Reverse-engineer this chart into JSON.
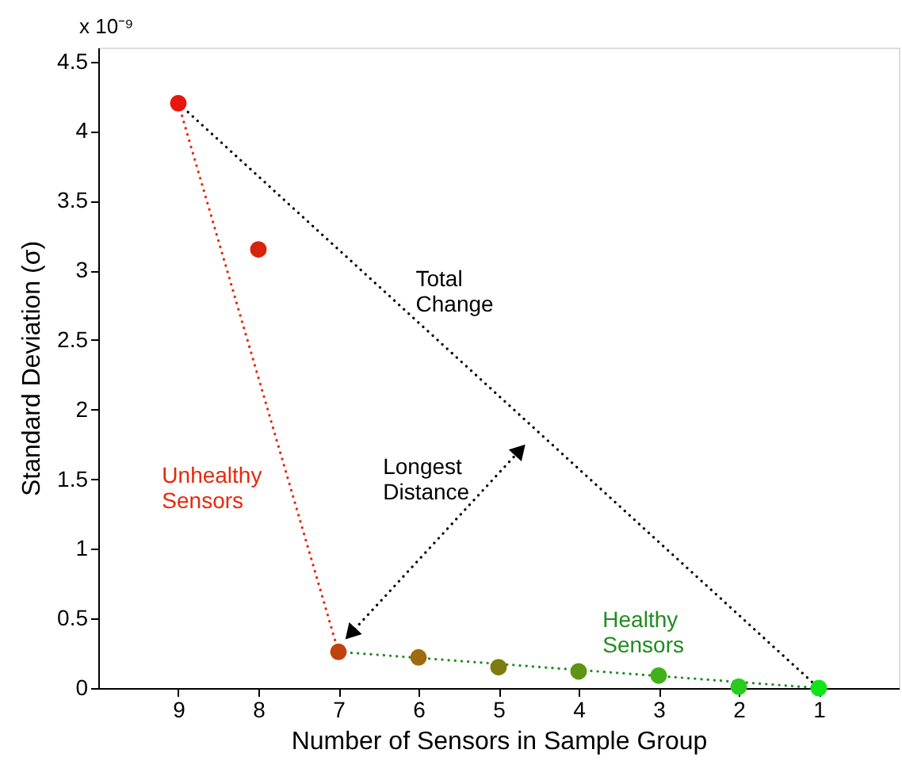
{
  "chart_data": {
    "type": "scatter",
    "xlabel": "Number of Sensors in Sample Group",
    "ylabel": "Standard Deviation (σ)",
    "annotations": [
      "x 10⁻⁹"
    ],
    "x": [
      9,
      8,
      7,
      6,
      5,
      4,
      3,
      2,
      1
    ],
    "series": [
      {
        "values": [
          4.2,
          3.15,
          0.26,
          0.22,
          0.15,
          0.12,
          0.09,
          0.01,
          0
        ],
        "colors": [
          "#e8160c",
          "#d8240c",
          "#c0420c",
          "#a06a10",
          "#7c7c10",
          "#5e9412",
          "#42b018",
          "#28cc1c",
          "#12e41c"
        ],
        "marker": "circle"
      },
      {
        "type": "line",
        "name": "Unhealthy Sensors",
        "color": "#e8280c",
        "x": [
          9,
          7
        ],
        "values": [
          4.2,
          0.26
        ],
        "line_style": "dotted"
      },
      {
        "type": "line",
        "name": "Healthy Sensors",
        "color": "#1e8c1e",
        "x": [
          7,
          1
        ],
        "values": [
          0.26,
          0
        ],
        "line_style": "dotted"
      },
      {
        "type": "line",
        "name": "Total Change",
        "color": "#000000",
        "x": [
          9,
          1
        ],
        "values": [
          4.2,
          0
        ],
        "line_style": "dotted"
      },
      {
        "type": "line",
        "name": "Longest Distance",
        "color": "#000000",
        "x": [
          6.85,
          4.73
        ],
        "values": [
          0.39,
          1.71
        ],
        "line_style": "dotted",
        "marker": "triangle"
      }
    ],
    "xlim": [
      10,
      0
    ],
    "xticks": [
      9,
      8,
      7,
      6,
      5,
      4,
      3,
      2,
      1
    ],
    "ylim": [
      0,
      4.6
    ],
    "yticks": [
      0,
      0.5,
      1,
      1.5,
      2,
      2.5,
      3,
      3.5,
      4,
      4.5
    ],
    "grid": false
  }
}
